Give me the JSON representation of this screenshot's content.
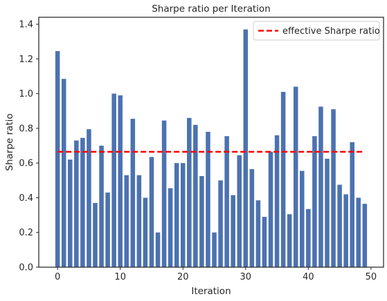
{
  "chart_data": {
    "type": "bar",
    "title": "Sharpe ratio per Iteration",
    "xlabel": "Iteration",
    "ylabel": "Sharpe ratio",
    "xlim": [
      -3,
      52
    ],
    "ylim": [
      0,
      1.44
    ],
    "xticks": [
      0,
      10,
      20,
      30,
      40,
      50
    ],
    "yticks": [
      0.0,
      0.2,
      0.4,
      0.6,
      0.8,
      1.0,
      1.2,
      1.4
    ],
    "x": [
      0,
      1,
      2,
      3,
      4,
      5,
      6,
      7,
      8,
      9,
      10,
      11,
      12,
      13,
      14,
      15,
      16,
      17,
      18,
      19,
      20,
      21,
      22,
      23,
      24,
      25,
      26,
      27,
      28,
      29,
      30,
      31,
      32,
      33,
      34,
      35,
      36,
      37,
      38,
      39,
      40,
      41,
      42,
      43,
      44,
      45,
      46,
      47,
      48,
      49
    ],
    "values": [
      1.245,
      1.085,
      0.62,
      0.73,
      0.745,
      0.795,
      0.37,
      0.7,
      0.43,
      1.0,
      0.99,
      0.53,
      0.855,
      0.53,
      0.4,
      0.635,
      0.2,
      0.845,
      0.455,
      0.6,
      0.6,
      0.86,
      0.82,
      0.525,
      0.78,
      0.2,
      0.5,
      0.755,
      0.415,
      0.645,
      1.37,
      0.565,
      0.385,
      0.29,
      0.665,
      0.76,
      1.01,
      0.305,
      1.04,
      0.555,
      0.335,
      0.755,
      0.925,
      0.625,
      0.91,
      0.475,
      0.42,
      0.72,
      0.4,
      0.365
    ],
    "bar_color": "#4c72b0",
    "reference_line": {
      "name": "effective Sharpe ratio",
      "value": 0.665,
      "x_range": [
        0,
        49
      ],
      "color": "#ff0000",
      "style": "dashed"
    },
    "legend_position": "top-right",
    "grid": false
  }
}
